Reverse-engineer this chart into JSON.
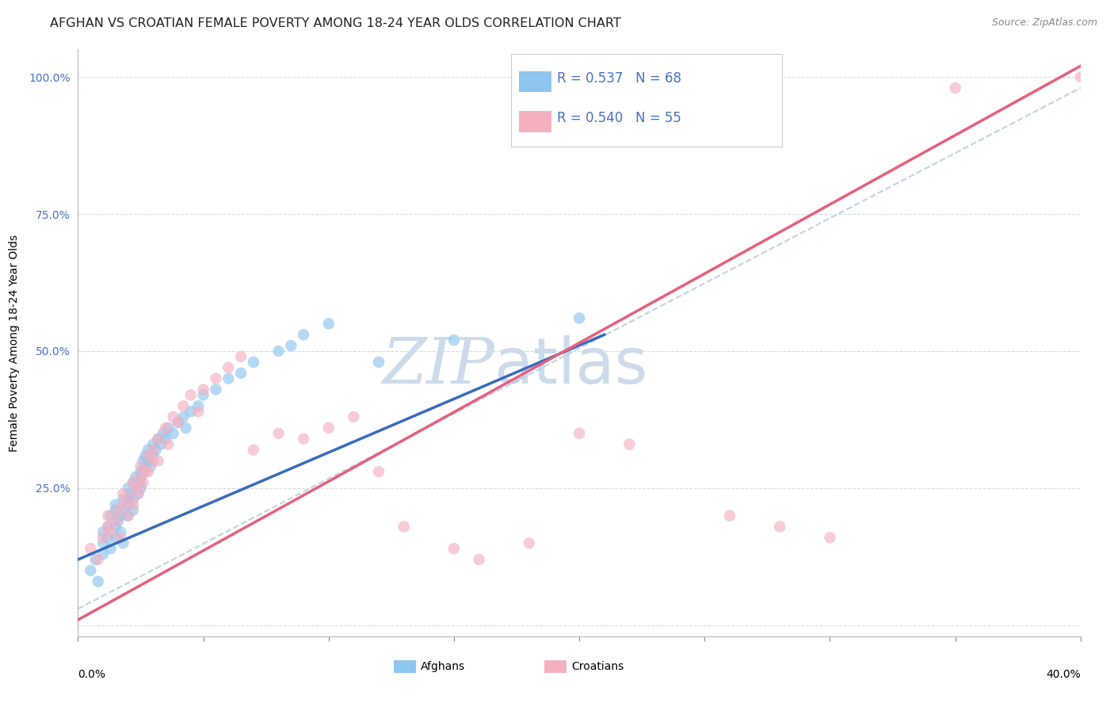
{
  "title": "AFGHAN VS CROATIAN FEMALE POVERTY AMONG 18-24 YEAR OLDS CORRELATION CHART",
  "source": "Source: ZipAtlas.com",
  "ylabel": "Female Poverty Among 18-24 Year Olds",
  "ytick_labels": [
    "",
    "25.0%",
    "50.0%",
    "75.0%",
    "100.0%"
  ],
  "xlim": [
    0.0,
    0.4
  ],
  "ylim": [
    -0.02,
    1.05
  ],
  "afghan_R": 0.537,
  "afghan_N": 68,
  "croatian_R": 0.54,
  "croatian_N": 55,
  "afghan_color": "#8ec6f0",
  "croatian_color": "#f5b0c0",
  "afghan_line_color": "#3a6abf",
  "croatian_line_color": "#e8607a",
  "ref_line_color": "#b0c8de",
  "watermark_text": "ZIPatlas",
  "watermark_color": "#ccdaeb",
  "background_color": "#ffffff",
  "title_fontsize": 11.5,
  "axis_label_fontsize": 10,
  "tick_fontsize": 10,
  "legend_fontsize": 12,
  "afghan_x": [
    0.005,
    0.007,
    0.008,
    0.01,
    0.01,
    0.01,
    0.012,
    0.012,
    0.013,
    0.013,
    0.015,
    0.015,
    0.015,
    0.015,
    0.016,
    0.017,
    0.017,
    0.018,
    0.018,
    0.018,
    0.02,
    0.02,
    0.02,
    0.02,
    0.021,
    0.022,
    0.022,
    0.022,
    0.023,
    0.023,
    0.024,
    0.025,
    0.025,
    0.025,
    0.025,
    0.026,
    0.026,
    0.027,
    0.027,
    0.028,
    0.028,
    0.029,
    0.03,
    0.03,
    0.031,
    0.032,
    0.033,
    0.034,
    0.035,
    0.036,
    0.038,
    0.04,
    0.042,
    0.043,
    0.045,
    0.048,
    0.05,
    0.055,
    0.06,
    0.065,
    0.07,
    0.08,
    0.085,
    0.09,
    0.1,
    0.12,
    0.15,
    0.2
  ],
  "afghan_y": [
    0.1,
    0.12,
    0.08,
    0.15,
    0.17,
    0.13,
    0.16,
    0.18,
    0.14,
    0.2,
    0.18,
    0.21,
    0.22,
    0.16,
    0.19,
    0.2,
    0.17,
    0.21,
    0.23,
    0.15,
    0.23,
    0.25,
    0.22,
    0.2,
    0.24,
    0.26,
    0.23,
    0.21,
    0.25,
    0.27,
    0.24,
    0.26,
    0.28,
    0.27,
    0.25,
    0.28,
    0.3,
    0.29,
    0.31,
    0.3,
    0.32,
    0.29,
    0.31,
    0.33,
    0.32,
    0.34,
    0.33,
    0.35,
    0.34,
    0.36,
    0.35,
    0.37,
    0.38,
    0.36,
    0.39,
    0.4,
    0.42,
    0.43,
    0.45,
    0.46,
    0.48,
    0.5,
    0.51,
    0.53,
    0.55,
    0.48,
    0.52,
    0.56
  ],
  "croatian_x": [
    0.005,
    0.008,
    0.01,
    0.012,
    0.012,
    0.013,
    0.015,
    0.016,
    0.017,
    0.018,
    0.018,
    0.02,
    0.02,
    0.022,
    0.022,
    0.023,
    0.024,
    0.025,
    0.025,
    0.026,
    0.027,
    0.028,
    0.028,
    0.03,
    0.03,
    0.032,
    0.032,
    0.035,
    0.036,
    0.038,
    0.04,
    0.042,
    0.045,
    0.048,
    0.05,
    0.055,
    0.06,
    0.065,
    0.07,
    0.08,
    0.09,
    0.1,
    0.11,
    0.12,
    0.13,
    0.15,
    0.16,
    0.18,
    0.2,
    0.22,
    0.26,
    0.28,
    0.3,
    0.35,
    0.4
  ],
  "croatian_y": [
    0.14,
    0.12,
    0.16,
    0.18,
    0.2,
    0.17,
    0.19,
    0.21,
    0.16,
    0.22,
    0.24,
    0.2,
    0.23,
    0.26,
    0.22,
    0.25,
    0.24,
    0.27,
    0.29,
    0.26,
    0.28,
    0.31,
    0.28,
    0.3,
    0.32,
    0.34,
    0.3,
    0.36,
    0.33,
    0.38,
    0.37,
    0.4,
    0.42,
    0.39,
    0.43,
    0.45,
    0.47,
    0.49,
    0.32,
    0.35,
    0.34,
    0.36,
    0.38,
    0.28,
    0.18,
    0.14,
    0.12,
    0.15,
    0.35,
    0.33,
    0.2,
    0.18,
    0.16,
    0.98,
    1.0
  ],
  "afghan_line_x": [
    0.0,
    0.21
  ],
  "afghan_line_y": [
    0.12,
    0.53
  ],
  "croatian_line_x": [
    0.0,
    0.4
  ],
  "croatian_line_y": [
    0.01,
    1.02
  ]
}
